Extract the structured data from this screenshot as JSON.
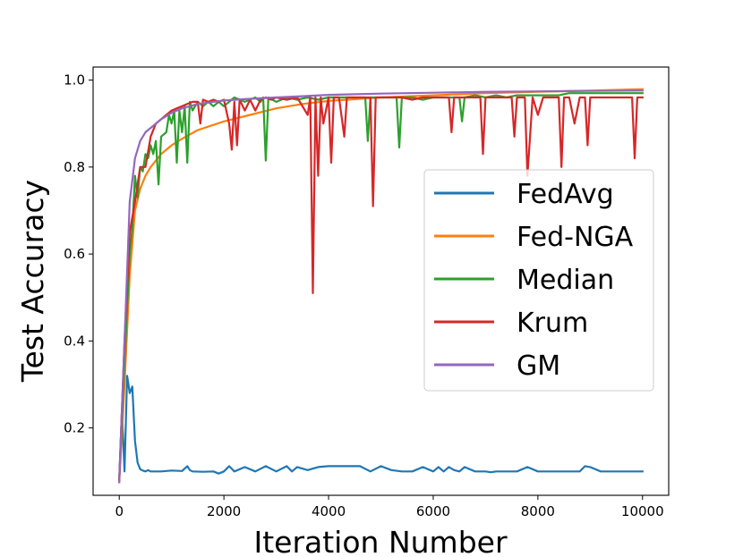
{
  "chart_data": {
    "type": "line",
    "title": "",
    "xlabel": "Iteration Number",
    "ylabel": "Test Accuracy",
    "xlim": [
      -500,
      10500
    ],
    "ylim": [
      0.045,
      1.03
    ],
    "xticks": [
      0,
      2000,
      4000,
      6000,
      8000,
      10000
    ],
    "xtick_labels": [
      "0",
      "2000",
      "4000",
      "6000",
      "8000",
      "10000"
    ],
    "yticks": [
      0.2,
      0.4,
      0.6,
      0.8,
      1.0
    ],
    "ytick_labels": [
      "0.2",
      "0.4",
      "0.6",
      "0.8",
      "1.0"
    ],
    "grid": false,
    "legend_position": "center-right",
    "series": [
      {
        "name": "FedAvg",
        "color": "#1f77b4",
        "x": [
          0,
          50,
          100,
          150,
          200,
          250,
          300,
          350,
          400,
          450,
          500,
          550,
          600,
          700,
          800,
          1000,
          1200,
          1300,
          1350,
          1400,
          1600,
          1800,
          1900,
          2000,
          2100,
          2200,
          2400,
          2600,
          2800,
          3000,
          3200,
          3300,
          3400,
          3600,
          3800,
          4000,
          4200,
          4400,
          4600,
          4800,
          5000,
          5200,
          5400,
          5600,
          5800,
          6000,
          6100,
          6200,
          6300,
          6400,
          6500,
          6600,
          6800,
          7000,
          7100,
          7200,
          7400,
          7600,
          7800,
          8000,
          8200,
          8400,
          8600,
          8800,
          8900,
          9000,
          9200,
          9400,
          9600,
          9800,
          10000
        ],
        "y": [
          0.08,
          0.24,
          0.1,
          0.32,
          0.28,
          0.295,
          0.17,
          0.12,
          0.105,
          0.102,
          0.1,
          0.103,
          0.1,
          0.1,
          0.1,
          0.102,
          0.101,
          0.112,
          0.103,
          0.1,
          0.099,
          0.1,
          0.095,
          0.1,
          0.112,
          0.1,
          0.11,
          0.1,
          0.112,
          0.1,
          0.112,
          0.1,
          0.11,
          0.103,
          0.11,
          0.112,
          0.112,
          0.112,
          0.112,
          0.1,
          0.112,
          0.103,
          0.1,
          0.1,
          0.11,
          0.1,
          0.11,
          0.1,
          0.11,
          0.103,
          0.1,
          0.11,
          0.1,
          0.1,
          0.098,
          0.1,
          0.1,
          0.1,
          0.11,
          0.1,
          0.1,
          0.1,
          0.1,
          0.1,
          0.112,
          0.11,
          0.1,
          0.1,
          0.1,
          0.1,
          0.1
        ]
      },
      {
        "name": "Fed-NGA",
        "color": "#ff7f0e",
        "x": [
          0,
          100,
          200,
          300,
          400,
          500,
          600,
          800,
          1000,
          1200,
          1500,
          2000,
          2500,
          3000,
          3500,
          4000,
          5000,
          6000,
          7000,
          8000,
          9000,
          10000
        ],
        "y": [
          0.075,
          0.3,
          0.55,
          0.7,
          0.75,
          0.78,
          0.8,
          0.83,
          0.85,
          0.865,
          0.885,
          0.905,
          0.92,
          0.935,
          0.945,
          0.952,
          0.96,
          0.965,
          0.97,
          0.973,
          0.976,
          0.979
        ]
      },
      {
        "name": "Median",
        "color": "#2ca02c",
        "x": [
          0,
          100,
          200,
          250,
          300,
          350,
          400,
          450,
          500,
          550,
          600,
          650,
          700,
          750,
          800,
          900,
          950,
          1000,
          1050,
          1100,
          1150,
          1200,
          1250,
          1300,
          1350,
          1400,
          1500,
          1600,
          1700,
          1800,
          1900,
          2000,
          2200,
          2400,
          2600,
          2700,
          2750,
          2800,
          2850,
          3000,
          3200,
          3400,
          3600,
          3800,
          4000,
          4200,
          4400,
          4600,
          4700,
          4750,
          4800,
          5000,
          5200,
          5300,
          5350,
          5400,
          5600,
          5800,
          6000,
          6200,
          6400,
          6500,
          6550,
          6600,
          6800,
          7000,
          7200,
          7400,
          7600,
          7800,
          8000,
          8200,
          8400,
          8600,
          8800,
          9000,
          9200,
          9400,
          9600,
          9800,
          10000
        ],
        "y": [
          0.08,
          0.35,
          0.6,
          0.66,
          0.78,
          0.73,
          0.8,
          0.79,
          0.83,
          0.82,
          0.85,
          0.83,
          0.86,
          0.76,
          0.87,
          0.88,
          0.92,
          0.9,
          0.93,
          0.81,
          0.93,
          0.88,
          0.94,
          0.81,
          0.95,
          0.93,
          0.95,
          0.94,
          0.95,
          0.94,
          0.95,
          0.94,
          0.96,
          0.95,
          0.96,
          0.95,
          0.96,
          0.815,
          0.96,
          0.95,
          0.96,
          0.955,
          0.96,
          0.955,
          0.96,
          0.96,
          0.96,
          0.96,
          0.96,
          0.86,
          0.96,
          0.96,
          0.96,
          0.96,
          0.845,
          0.96,
          0.96,
          0.955,
          0.96,
          0.96,
          0.96,
          0.96,
          0.905,
          0.96,
          0.965,
          0.96,
          0.965,
          0.96,
          0.965,
          0.965,
          0.965,
          0.965,
          0.965,
          0.97,
          0.97,
          0.97,
          0.97,
          0.97,
          0.97,
          0.97,
          0.97
        ]
      },
      {
        "name": "Krum",
        "color": "#d62728",
        "x": [
          0,
          100,
          200,
          300,
          400,
          500,
          600,
          700,
          800,
          900,
          1000,
          1100,
          1200,
          1300,
          1400,
          1500,
          1550,
          1600,
          1700,
          1800,
          1900,
          2000,
          2100,
          2150,
          2200,
          2250,
          2300,
          2400,
          2500,
          2600,
          2700,
          2800,
          2900,
          3000,
          3200,
          3400,
          3600,
          3650,
          3700,
          3750,
          3800,
          3850,
          3900,
          4000,
          4050,
          4100,
          4200,
          4300,
          4350,
          4400,
          4600,
          4800,
          4850,
          4900,
          5000,
          5200,
          5400,
          5600,
          5800,
          6000,
          6200,
          6300,
          6350,
          6400,
          6600,
          6800,
          6900,
          6950,
          7000,
          7200,
          7400,
          7500,
          7550,
          7600,
          7700,
          7750,
          7800,
          7900,
          8000,
          8100,
          8200,
          8300,
          8400,
          8450,
          8500,
          8600,
          8700,
          8800,
          8900,
          8950,
          9000,
          9200,
          9400,
          9600,
          9800,
          9850,
          9900,
          10000
        ],
        "y": [
          0.08,
          0.4,
          0.65,
          0.72,
          0.8,
          0.8,
          0.87,
          0.9,
          0.91,
          0.92,
          0.93,
          0.935,
          0.94,
          0.945,
          0.95,
          0.95,
          0.9,
          0.955,
          0.95,
          0.955,
          0.95,
          0.955,
          0.9,
          0.84,
          0.95,
          0.85,
          0.955,
          0.93,
          0.955,
          0.93,
          0.955,
          0.96,
          0.955,
          0.96,
          0.955,
          0.96,
          0.92,
          0.96,
          0.51,
          0.96,
          0.78,
          0.96,
          0.9,
          0.96,
          0.81,
          0.96,
          0.96,
          0.87,
          0.96,
          0.96,
          0.96,
          0.96,
          0.71,
          0.96,
          0.96,
          0.96,
          0.96,
          0.955,
          0.96,
          0.96,
          0.96,
          0.96,
          0.88,
          0.96,
          0.96,
          0.96,
          0.96,
          0.83,
          0.96,
          0.96,
          0.96,
          0.96,
          0.87,
          0.96,
          0.96,
          0.96,
          0.78,
          0.96,
          0.92,
          0.96,
          0.96,
          0.96,
          0.96,
          0.8,
          0.96,
          0.96,
          0.9,
          0.96,
          0.96,
          0.85,
          0.96,
          0.96,
          0.96,
          0.96,
          0.96,
          0.82,
          0.96,
          0.96
        ]
      },
      {
        "name": "GM",
        "color": "#9467bd",
        "x": [
          0,
          100,
          200,
          300,
          400,
          500,
          600,
          800,
          1000,
          1200,
          1500,
          2000,
          2500,
          3000,
          3500,
          4000,
          5000,
          6000,
          7000,
          8000,
          9000,
          10000
        ],
        "y": [
          0.075,
          0.4,
          0.72,
          0.82,
          0.86,
          0.88,
          0.89,
          0.91,
          0.925,
          0.935,
          0.945,
          0.953,
          0.957,
          0.96,
          0.963,
          0.966,
          0.969,
          0.971,
          0.973,
          0.974,
          0.975,
          0.976
        ]
      }
    ]
  }
}
